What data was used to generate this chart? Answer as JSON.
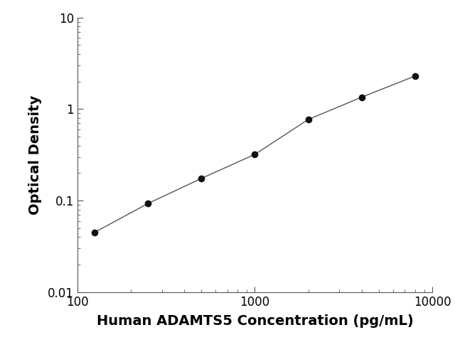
{
  "x": [
    125,
    250,
    500,
    1000,
    2000,
    4000,
    8000
  ],
  "y": [
    0.045,
    0.093,
    0.175,
    0.32,
    0.77,
    1.35,
    2.3
  ],
  "xlim": [
    100,
    10000
  ],
  "ylim": [
    0.01,
    10
  ],
  "xlabel": "Human ADAMTS5 Concentration (pg/mL)",
  "ylabel": "Optical Density",
  "line_color": "#555555",
  "marker_color": "#111111",
  "marker_size": 7,
  "line_width": 1.0,
  "background_color": "#ffffff",
  "xlabel_fontsize": 14,
  "ylabel_fontsize": 14,
  "xlabel_fontweight": "bold",
  "ylabel_fontweight": "bold",
  "tick_labelsize": 12,
  "spine_color": "#555555"
}
